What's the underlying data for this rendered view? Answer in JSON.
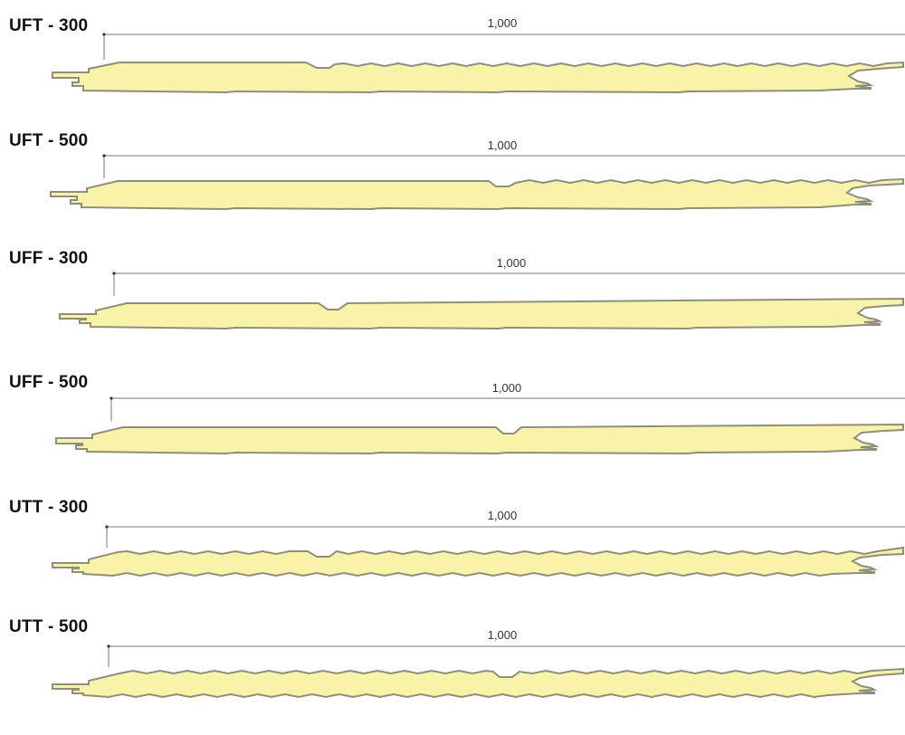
{
  "colors": {
    "foam_fill": "#f8f3a7",
    "panel_outline": "#8e8e7a",
    "dimension_line": "#777777",
    "title_text": "#111111"
  },
  "dimension_label": "1,000",
  "panels": [
    {
      "code": "UFT - 300",
      "top_profile": "corrugated",
      "bottom_profile": "flat-ribbed",
      "joint_recess": "near-left"
    },
    {
      "code": "UFT - 500",
      "top_profile": "corrugated",
      "bottom_profile": "flat-ribbed",
      "joint_recess": "center"
    },
    {
      "code": "UFF - 300",
      "top_profile": "flat",
      "bottom_profile": "flat-ribbed",
      "joint_recess": "near-left"
    },
    {
      "code": "UFF - 500",
      "top_profile": "flat",
      "bottom_profile": "flat-ribbed",
      "joint_recess": "center"
    },
    {
      "code": "UTT - 300",
      "top_profile": "corrugated",
      "bottom_profile": "corrugated",
      "joint_recess": "near-left"
    },
    {
      "code": "UTT - 500",
      "top_profile": "corrugated",
      "bottom_profile": "corrugated",
      "joint_recess": "center"
    }
  ]
}
